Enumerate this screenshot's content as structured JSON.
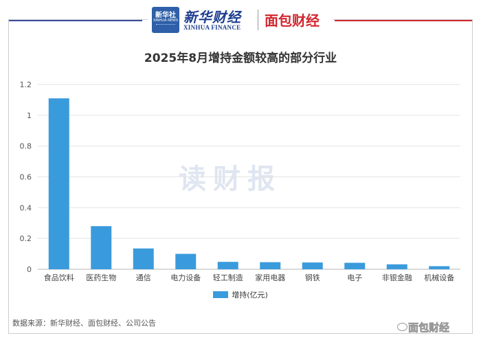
{
  "header": {
    "xinhua_icon_text": "新华社",
    "xinhua_icon_subtext": "XINHUA NEWS",
    "brand_cn": "新华财经",
    "brand_en": "XINHUA FINANCE",
    "brand2": "面包财经"
  },
  "watermark": "读财报",
  "source": "数据来源：新华财经、面包财经、公司公告",
  "corner_watermark": "面包财经",
  "colors": {
    "bar": "#3a9bdc",
    "accent_blue": "#3b4c9a",
    "accent_red": "#d1262e"
  },
  "chart_data": {
    "type": "bar",
    "title": "2025年8月增持金额较高的部分行业",
    "categories": [
      "食品饮料",
      "医药生物",
      "通信",
      "电力设备",
      "轻工制造",
      "家用电器",
      "钢铁",
      "电子",
      "非银金融",
      "机械设备"
    ],
    "series": [
      {
        "name": "增持(亿元)",
        "values": [
          1.11,
          0.28,
          0.135,
          0.1,
          0.048,
          0.046,
          0.044,
          0.042,
          0.032,
          0.02
        ]
      }
    ],
    "yticks": [
      "0",
      "0.2",
      "0.4",
      "0.6",
      "0.8",
      "1",
      "1.2"
    ],
    "ylim": [
      0,
      1.2
    ],
    "grid": true,
    "legend": "bottom-center"
  }
}
